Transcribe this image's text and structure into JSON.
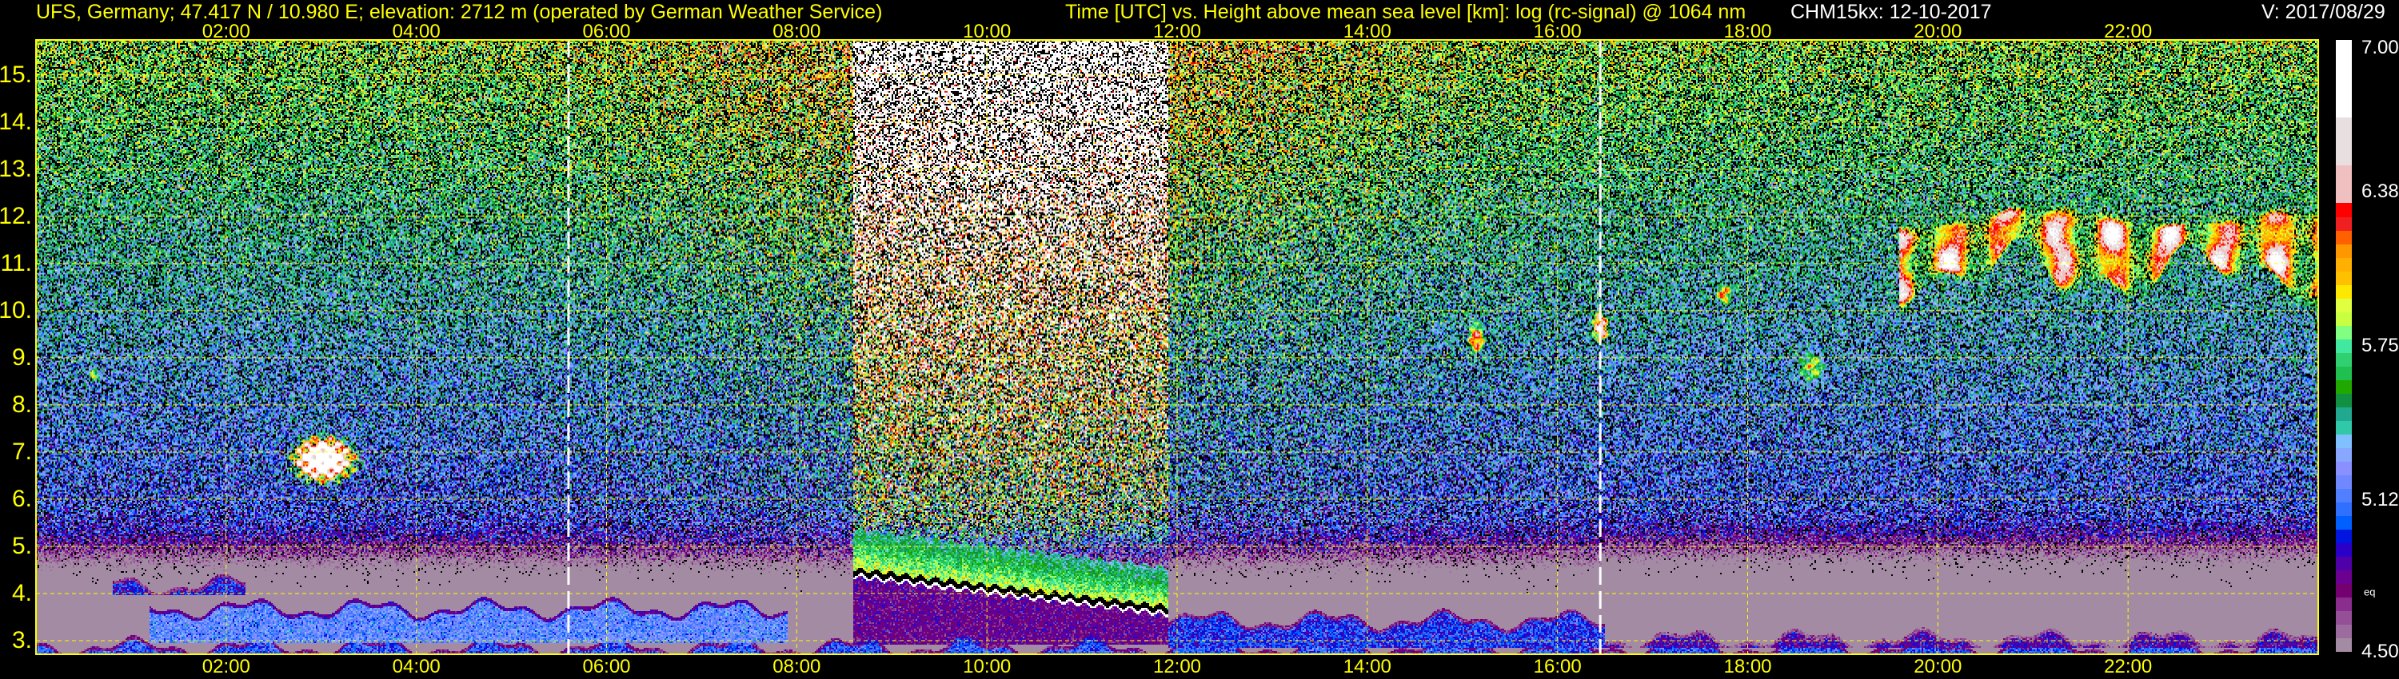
{
  "header": {
    "title_left": "UFS, Germany; 47.417 N / 10.980 E; elevation: 2712 m  (operated by German Weather Service)",
    "title_center": "Time [UTC] vs. Height above mean sea level [km]: log (rc-signal) @ 1064 nm",
    "instrument": "CHM15kx: 12-10-2017",
    "version": "V: 2017/08/29"
  },
  "colors": {
    "text": "#ffff00",
    "text_secondary": "#ffffff",
    "grid": "#ffff00",
    "marker": "#ffffff",
    "background": "#000000",
    "no_signal": "#000000"
  },
  "chart_data": {
    "type": "heatmap",
    "title": "Time [UTC] vs. Height above mean sea level [km]: log (rc-signal) @ 1064 nm",
    "xlim": [
      0,
      24
    ],
    "ylim": [
      2.712,
      15.74
    ],
    "x_ticks": [
      {
        "value": 2,
        "label": "02:00"
      },
      {
        "value": 4,
        "label": "04:00"
      },
      {
        "value": 6,
        "label": "06:00"
      },
      {
        "value": 8,
        "label": "08:00"
      },
      {
        "value": 10,
        "label": "10:00"
      },
      {
        "value": 12,
        "label": "12:00"
      },
      {
        "value": 14,
        "label": "14:00"
      },
      {
        "value": 16,
        "label": "16:00"
      },
      {
        "value": 18,
        "label": "18:00"
      },
      {
        "value": 20,
        "label": "20:00"
      },
      {
        "value": 22,
        "label": "22:00"
      }
    ],
    "y_ticks": [
      {
        "value": 3,
        "label": "3."
      },
      {
        "value": 4,
        "label": "4."
      },
      {
        "value": 5,
        "label": "5."
      },
      {
        "value": 6,
        "label": "6."
      },
      {
        "value": 7,
        "label": "7."
      },
      {
        "value": 8,
        "label": "8."
      },
      {
        "value": 9,
        "label": "9."
      },
      {
        "value": 10,
        "label": "10."
      },
      {
        "value": 11,
        "label": "11."
      },
      {
        "value": 12,
        "label": "12."
      },
      {
        "value": 13,
        "label": "13."
      },
      {
        "value": 14,
        "label": "14."
      },
      {
        "value": 15,
        "label": "15."
      }
    ],
    "grid": true,
    "vertical_markers_h": [
      5.6,
      16.45
    ],
    "colorbar": {
      "range": [
        4.5,
        7.0
      ],
      "ticks": [
        {
          "value": 4.5,
          "label": "4.50"
        },
        {
          "value": 5.12,
          "label": "5.12"
        },
        {
          "value": 5.75,
          "label": "5.75"
        },
        {
          "value": 6.38,
          "label": "6.38"
        },
        {
          "value": 7.0,
          "label": "7.00"
        }
      ],
      "label": "eq",
      "colors_bottom_to_top": [
        "#a38ba3",
        "#9d6c9f",
        "#944f97",
        "#8a2d8e",
        "#75006f",
        "#6c0090",
        "#5000a8",
        "#2a00c8",
        "#0015e0",
        "#0060ff",
        "#3070ff",
        "#5080ff",
        "#7088ff",
        "#8a90ff",
        "#88a8ff",
        "#80c0ff",
        "#30c8a8",
        "#20a890",
        "#109040",
        "#20a800",
        "#20c050",
        "#30d070",
        "#40e8a0",
        "#80ff80",
        "#c8ff40",
        "#e0ff40",
        "#ffe800",
        "#ffc000",
        "#ffb000",
        "#ff9800",
        "#ff6000",
        "#f02020",
        "#ff0000",
        "#f0c0c0",
        "#e8e0e0",
        "#ffffff"
      ]
    },
    "features": [
      {
        "kind": "layer",
        "t_h": [
          0,
          24
        ],
        "height_km": [
          2.71,
          2.88
        ],
        "level": 5.05
      },
      {
        "kind": "layer",
        "t_h": [
          1.2,
          7.9
        ],
        "height_km": [
          2.95,
          3.7
        ],
        "level": 5.18
      },
      {
        "kind": "layer",
        "t_h": [
          0.8,
          2.2
        ],
        "height_km": [
          3.95,
          4.2
        ],
        "level": 4.95
      },
      {
        "kind": "layer",
        "t_h": [
          11.9,
          16.5
        ],
        "height_km": [
          2.85,
          3.45
        ],
        "level": 5.0
      },
      {
        "kind": "layer",
        "t_h": [
          16.5,
          24
        ],
        "height_km": [
          2.85,
          3.05
        ],
        "level": 4.85
      },
      {
        "kind": "convective",
        "t_h": [
          8.6,
          11.9
        ],
        "height_km": [
          3.6,
          4.4
        ],
        "level": 6.1
      },
      {
        "kind": "cloud",
        "t_h": [
          2.65,
          3.4
        ],
        "height_km": [
          6.3,
          7.4
        ],
        "level": 7.1
      },
      {
        "kind": "cloud",
        "t_h": [
          0.55,
          0.68
        ],
        "height_km": [
          8.5,
          8.8
        ],
        "level": 6.0
      },
      {
        "kind": "cloud",
        "t_h": [
          15.05,
          15.25
        ],
        "height_km": [
          9.0,
          9.8
        ],
        "level": 6.3
      },
      {
        "kind": "cloud",
        "t_h": [
          16.35,
          16.55
        ],
        "height_km": [
          9.3,
          10.0
        ],
        "level": 6.6
      },
      {
        "kind": "cloud",
        "t_h": [
          17.65,
          17.85
        ],
        "height_km": [
          10.1,
          10.6
        ],
        "level": 6.2
      },
      {
        "kind": "cloud",
        "t_h": [
          18.5,
          18.85
        ],
        "height_km": [
          8.4,
          9.2
        ],
        "level": 5.9
      },
      {
        "kind": "cirrus",
        "t_h": [
          19.6,
          24
        ],
        "height_km": [
          10.2,
          12.1
        ],
        "level": 6.5
      }
    ]
  }
}
